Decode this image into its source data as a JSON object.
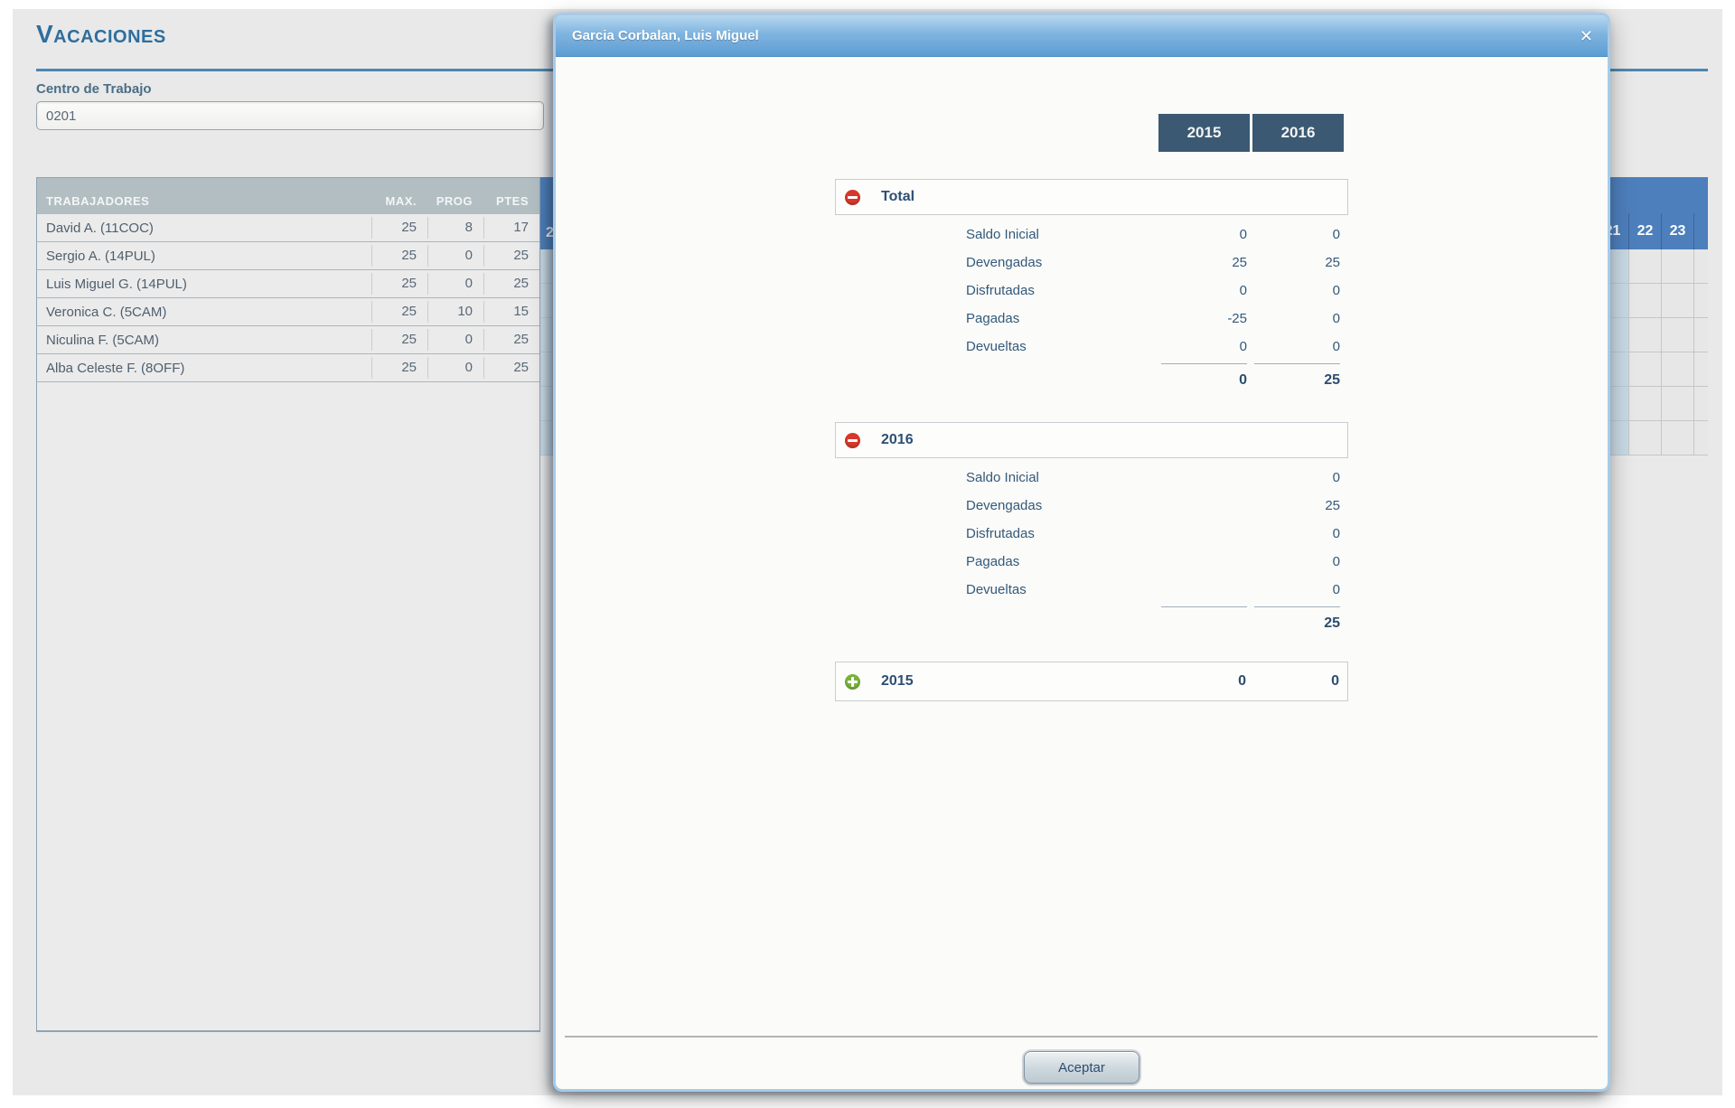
{
  "colors": {
    "accent_blue": "#2e6e9e",
    "calendar_header_blue": "#4d7fbc",
    "year_tab_navy": "#3b5972",
    "table_header_gray": "#b2bec2",
    "collapse_red": "#d6382c",
    "expand_green": "#7ab23c",
    "modal_header_blue": "#7fb4e0"
  },
  "page": {
    "title": "Vacaciones",
    "centro": {
      "label": "Centro de Trabajo",
      "value": "0201"
    },
    "workers_table": {
      "columns": {
        "trabajadores": "TRABAJADORES",
        "max": "MAX.",
        "prog": "PROG",
        "ptes": "PTES"
      },
      "rows": [
        {
          "name": "David A. (11COC)",
          "max": "25",
          "prog": "8",
          "ptes": "17"
        },
        {
          "name": "Sergio A. (14PUL)",
          "max": "25",
          "prog": "0",
          "ptes": "25"
        },
        {
          "name": "Luis Miguel G. (14PUL)",
          "max": "25",
          "prog": "0",
          "ptes": "25"
        },
        {
          "name": "Veronica C. (5CAM)",
          "max": "25",
          "prog": "10",
          "ptes": "15"
        },
        {
          "name": "Niculina F. (5CAM)",
          "max": "25",
          "prog": "0",
          "ptes": "25"
        },
        {
          "name": "Alba Celeste F. (8OFF)",
          "max": "25",
          "prog": "0",
          "ptes": "25"
        }
      ]
    },
    "calendar": {
      "partial_day": "2",
      "days": [
        "21",
        "22",
        "23"
      ]
    }
  },
  "modal": {
    "title": "Garcia Corbalan, Luis Miguel",
    "close": "✕",
    "years": [
      "2015",
      "2016"
    ],
    "sections": [
      {
        "label": "Total",
        "icon": "minus",
        "rows": [
          {
            "label": "Saldo Inicial",
            "v2015": "0",
            "v2016": "0"
          },
          {
            "label": "Devengadas",
            "v2015": "25",
            "v2016": "25"
          },
          {
            "label": "Disfrutadas",
            "v2015": "0",
            "v2016": "0"
          },
          {
            "label": "Pagadas",
            "v2015": "-25",
            "v2016": "0"
          },
          {
            "label": "Devueltas",
            "v2015": "0",
            "v2016": "0"
          }
        ],
        "total": {
          "v2015": "0",
          "v2016": "25"
        }
      },
      {
        "label": "2016",
        "icon": "minus",
        "rows": [
          {
            "label": "Saldo Inicial",
            "v2015": "",
            "v2016": "0"
          },
          {
            "label": "Devengadas",
            "v2015": "",
            "v2016": "25"
          },
          {
            "label": "Disfrutadas",
            "v2015": "",
            "v2016": "0"
          },
          {
            "label": "Pagadas",
            "v2015": "",
            "v2016": "0"
          },
          {
            "label": "Devueltas",
            "v2015": "",
            "v2016": "0"
          }
        ],
        "total": {
          "v2015": "",
          "v2016": "25"
        }
      },
      {
        "label": "2015",
        "icon": "plus",
        "values": {
          "v2015": "0",
          "v2016": "0"
        }
      }
    ],
    "accept": "Aceptar"
  }
}
